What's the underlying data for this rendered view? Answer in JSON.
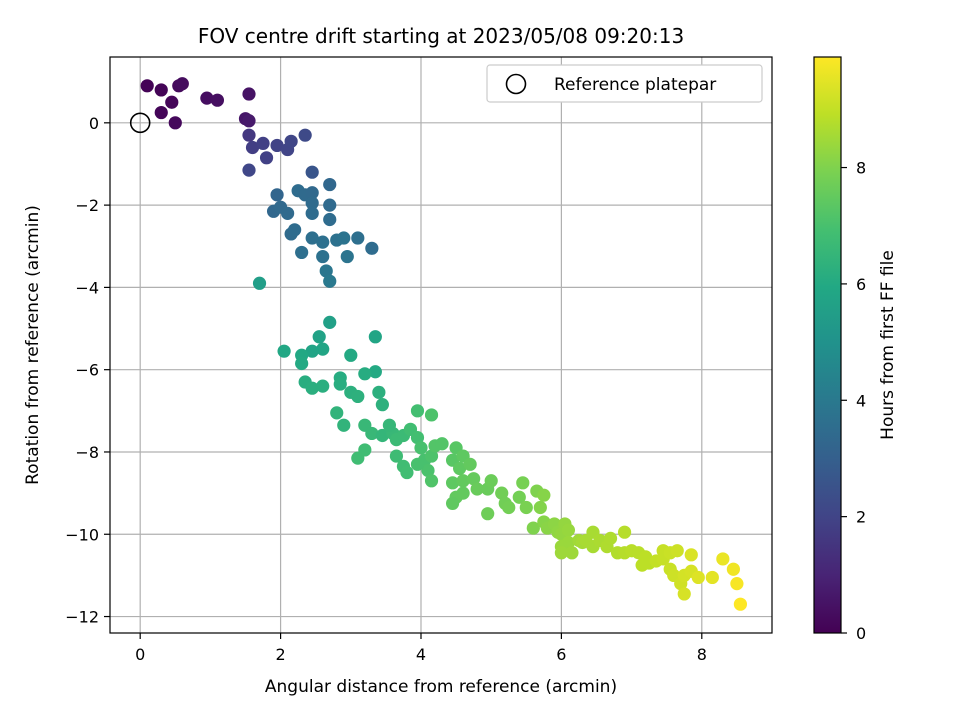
{
  "chart_data": {
    "type": "scatter",
    "title": "FOV centre drift starting at 2023/05/08 09:20:13",
    "xlabel": "Angular distance from reference (arcmin)",
    "ylabel": "Rotation from reference (arcmin)",
    "xlim": [
      -0.43,
      9.0
    ],
    "ylim": [
      -12.4,
      1.6
    ],
    "xticks": [
      "0",
      "2",
      "4",
      "6",
      "8"
    ],
    "xtick_values": [
      0,
      2,
      4,
      6,
      8
    ],
    "yticks": [
      "−12",
      "−10",
      "−8",
      "−6",
      "−4",
      "−2",
      "0"
    ],
    "ytick_values": [
      -12,
      -10,
      -8,
      -6,
      -4,
      -2,
      0
    ],
    "grid": true,
    "legend": {
      "label": "Reference platepar",
      "placement": "top-right",
      "marker": "hollow circle"
    },
    "reference_point": {
      "x": 0,
      "y": 0
    },
    "colorbar": {
      "label": "Hours from first FF file",
      "colormap": "viridis",
      "range": [
        0,
        9.9
      ],
      "ticks": [
        "0",
        "2",
        "4",
        "6",
        "8"
      ],
      "tick_values": [
        0,
        2,
        4,
        6,
        8
      ]
    },
    "points": [
      [
        0.1,
        0.9,
        0.05
      ],
      [
        0.3,
        0.8,
        0.1
      ],
      [
        0.3,
        0.25,
        0.12
      ],
      [
        0.45,
        0.5,
        0.15
      ],
      [
        0.5,
        0,
        0.2
      ],
      [
        0.55,
        0.9,
        0.25
      ],
      [
        0.6,
        0.95,
        0.3
      ],
      [
        0.95,
        0.6,
        0.35
      ],
      [
        1.1,
        0.55,
        0.4
      ],
      [
        1.55,
        0.7,
        0.5
      ],
      [
        1.5,
        0.1,
        0.6
      ],
      [
        1.55,
        0.05,
        0.7
      ],
      [
        1.55,
        -0.3,
        1.6
      ],
      [
        1.6,
        -0.6,
        1.8
      ],
      [
        1.75,
        -0.5,
        1.85
      ],
      [
        1.8,
        -0.85,
        1.9
      ],
      [
        1.95,
        -0.55,
        1.95
      ],
      [
        2.1,
        -0.65,
        2.0
      ],
      [
        2.15,
        -0.45,
        2.05
      ],
      [
        1.55,
        -1.15,
        2.1
      ],
      [
        2.35,
        -0.3,
        2.2
      ],
      [
        2.45,
        -1.2,
        2.6
      ],
      [
        1.95,
        -1.75,
        3.2
      ],
      [
        1.9,
        -2.15,
        3.3
      ],
      [
        2.0,
        -2.05,
        3.35
      ],
      [
        2.1,
        -2.2,
        3.4
      ],
      [
        2.15,
        -2.7,
        3.45
      ],
      [
        2.2,
        -2.6,
        3.5
      ],
      [
        2.25,
        -1.65,
        3.5
      ],
      [
        2.35,
        -1.75,
        3.4
      ],
      [
        2.45,
        -1.7,
        3.35
      ],
      [
        2.45,
        -1.95,
        3.45
      ],
      [
        2.45,
        -2.2,
        3.5
      ],
      [
        2.7,
        -1.5,
        3.3
      ],
      [
        2.7,
        -2.0,
        3.4
      ],
      [
        2.7,
        -2.35,
        3.5
      ],
      [
        2.3,
        -3.15,
        3.6
      ],
      [
        2.45,
        -2.8,
        3.6
      ],
      [
        2.6,
        -2.9,
        3.65
      ],
      [
        2.6,
        -3.25,
        3.7
      ],
      [
        2.8,
        -2.85,
        3.7
      ],
      [
        2.9,
        -2.8,
        3.75
      ],
      [
        3.1,
        -2.8,
        3.6
      ],
      [
        3.3,
        -3.05,
        3.5
      ],
      [
        2.95,
        -3.25,
        3.8
      ],
      [
        2.65,
        -3.6,
        3.9
      ],
      [
        2.7,
        -3.85,
        4.0
      ],
      [
        1.7,
        -3.9,
        5.5
      ],
      [
        2.7,
        -4.85,
        5.6
      ],
      [
        2.55,
        -5.2,
        5.7
      ],
      [
        2.6,
        -5.5,
        5.8
      ],
      [
        2.45,
        -5.55,
        5.75
      ],
      [
        3.35,
        -5.2,
        5.8
      ],
      [
        2.05,
        -5.55,
        5.9
      ],
      [
        2.3,
        -5.65,
        5.95
      ],
      [
        2.3,
        -5.85,
        6.0
      ],
      [
        3.0,
        -5.65,
        6.0
      ],
      [
        3.35,
        -6.05,
        6.0
      ],
      [
        3.2,
        -6.1,
        6.1
      ],
      [
        2.85,
        -6.2,
        6.1
      ],
      [
        2.35,
        -6.3,
        6.15
      ],
      [
        2.45,
        -6.45,
        6.2
      ],
      [
        2.6,
        -6.4,
        6.2
      ],
      [
        2.85,
        -6.35,
        6.15
      ],
      [
        3.0,
        -6.55,
        6.25
      ],
      [
        3.1,
        -6.65,
        6.3
      ],
      [
        3.4,
        -6.55,
        6.25
      ],
      [
        3.45,
        -6.85,
        6.3
      ],
      [
        2.8,
        -7.05,
        6.4
      ],
      [
        2.9,
        -7.35,
        6.4
      ],
      [
        3.2,
        -7.35,
        6.6
      ],
      [
        3.3,
        -7.55,
        6.6
      ],
      [
        3.45,
        -7.6,
        6.5
      ],
      [
        3.6,
        -7.55,
        6.6
      ],
      [
        3.55,
        -7.35,
        6.55
      ],
      [
        3.65,
        -7.7,
        6.7
      ],
      [
        3.75,
        -7.6,
        6.7
      ],
      [
        3.1,
        -8.15,
        6.8
      ],
      [
        3.2,
        -7.95,
        6.8
      ],
      [
        3.65,
        -8.1,
        6.75
      ],
      [
        3.75,
        -8.35,
        6.8
      ],
      [
        3.8,
        -8.5,
        6.85
      ],
      [
        3.85,
        -7.45,
        6.85
      ],
      [
        3.95,
        -7.0,
        6.9
      ],
      [
        3.95,
        -7.65,
        6.9
      ],
      [
        4.0,
        -7.9,
        7.0
      ],
      [
        4.05,
        -8.2,
        7.0
      ],
      [
        4.1,
        -8.45,
        7.05
      ],
      [
        4.15,
        -7.1,
        7.1
      ],
      [
        4.15,
        -8.1,
        7.1
      ],
      [
        4.15,
        -8.7,
        7.15
      ],
      [
        4.2,
        -7.85,
        7.2
      ],
      [
        3.95,
        -8.3,
        7.0
      ],
      [
        4.3,
        -7.8,
        7.2
      ],
      [
        4.45,
        -8.2,
        7.3
      ],
      [
        4.5,
        -7.9,
        7.3
      ],
      [
        4.6,
        -8.1,
        7.4
      ],
      [
        4.55,
        -8.4,
        7.4
      ],
      [
        4.45,
        -8.75,
        7.4
      ],
      [
        4.6,
        -8.7,
        7.5
      ],
      [
        4.5,
        -9.1,
        7.5
      ],
      [
        4.45,
        -9.25,
        7.45
      ],
      [
        4.6,
        -9.0,
        7.5
      ],
      [
        4.7,
        -8.3,
        7.5
      ],
      [
        4.75,
        -8.65,
        7.55
      ],
      [
        4.8,
        -8.9,
        7.6
      ],
      [
        4.95,
        -8.9,
        7.6
      ],
      [
        5.0,
        -8.7,
        7.65
      ],
      [
        4.95,
        -9.5,
        7.7
      ],
      [
        5.15,
        -9.0,
        7.75
      ],
      [
        5.2,
        -9.25,
        7.75
      ],
      [
        5.25,
        -9.35,
        7.8
      ],
      [
        5.4,
        -9.1,
        7.8
      ],
      [
        5.45,
        -8.75,
        7.85
      ],
      [
        5.5,
        -9.35,
        7.9
      ],
      [
        5.6,
        -9.85,
        8.0
      ],
      [
        5.65,
        -8.95,
        8.0
      ],
      [
        5.7,
        -9.35,
        8.05
      ],
      [
        5.75,
        -9.05,
        8.1
      ],
      [
        5.75,
        -9.7,
        8.1
      ],
      [
        5.8,
        -9.85,
        8.15
      ],
      [
        5.9,
        -9.75,
        8.2
      ],
      [
        5.95,
        -9.95,
        8.25
      ],
      [
        6.0,
        -10.0,
        8.3
      ],
      [
        6.05,
        -9.75,
        8.3
      ],
      [
        6.1,
        -9.9,
        8.35
      ],
      [
        6.1,
        -10.2,
        8.4
      ],
      [
        6.0,
        -10.3,
        8.4
      ],
      [
        6.0,
        -10.45,
        8.45
      ],
      [
        6.15,
        -10.45,
        8.45
      ],
      [
        6.25,
        -10.15,
        8.5
      ],
      [
        6.3,
        -10.2,
        8.55
      ],
      [
        6.35,
        -10.15,
        8.6
      ],
      [
        6.45,
        -10.3,
        8.6
      ],
      [
        6.45,
        -9.95,
        8.6
      ],
      [
        6.55,
        -10.15,
        8.65
      ],
      [
        6.65,
        -10.3,
        8.7
      ],
      [
        6.7,
        -10.1,
        8.7
      ],
      [
        6.8,
        -10.45,
        8.75
      ],
      [
        6.9,
        -10.45,
        8.8
      ],
      [
        6.9,
        -9.95,
        8.8
      ],
      [
        7.0,
        -10.4,
        8.85
      ],
      [
        7.1,
        -10.45,
        8.85
      ],
      [
        7.15,
        -10.75,
        8.9
      ],
      [
        7.25,
        -10.7,
        8.9
      ],
      [
        7.2,
        -10.55,
        8.9
      ],
      [
        7.35,
        -10.65,
        9.0
      ],
      [
        7.45,
        -10.4,
        9.05
      ],
      [
        7.45,
        -10.6,
        9.05
      ],
      [
        7.55,
        -10.45,
        9.1
      ],
      [
        7.55,
        -10.85,
        9.1
      ],
      [
        7.6,
        -11.0,
        9.15
      ],
      [
        7.65,
        -10.4,
        9.15
      ],
      [
        7.7,
        -11.2,
        9.2
      ],
      [
        7.75,
        -11.0,
        9.25
      ],
      [
        7.75,
        -11.45,
        9.3
      ],
      [
        7.85,
        -10.9,
        9.3
      ],
      [
        7.85,
        -10.5,
        9.35
      ],
      [
        7.95,
        -11.05,
        9.4
      ],
      [
        8.15,
        -11.05,
        9.5
      ],
      [
        8.3,
        -10.6,
        9.6
      ],
      [
        8.45,
        -10.85,
        9.7
      ],
      [
        8.5,
        -11.2,
        9.8
      ],
      [
        8.55,
        -11.7,
        9.9
      ]
    ]
  }
}
